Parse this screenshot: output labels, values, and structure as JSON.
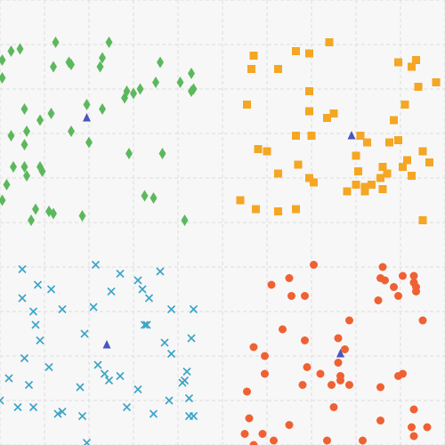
{
  "chart_data": {
    "type": "scatter",
    "title": "",
    "xlabel": "",
    "ylabel": "",
    "xlim": [
      0,
      10
    ],
    "ylim": [
      0,
      10
    ],
    "grid": true,
    "legend": "none",
    "colors": {
      "background": "#f7f7f7",
      "grid": "#dddddd",
      "green": "#5cb85c",
      "orange": "#f5a623",
      "blue": "#3aa3c8",
      "red": "#ef6133",
      "centroid": "#4a56c0"
    },
    "series": [
      {
        "marker": "diamond",
        "color": "#5cb85c",
        "points": [
          [
            0.05,
            8.65
          ],
          [
            0.25,
            8.85
          ],
          [
            0.45,
            8.9
          ],
          [
            1.25,
            9.05
          ],
          [
            2.45,
            9.05
          ],
          [
            1.6,
            8.55
          ],
          [
            1.2,
            8.5
          ],
          [
            1.55,
            8.6
          ],
          [
            2.3,
            8.7
          ],
          [
            2.25,
            8.5
          ],
          [
            3.6,
            8.6
          ],
          [
            0.05,
            8.25
          ],
          [
            4.3,
            8.35
          ],
          [
            4.05,
            8.15
          ],
          [
            4.3,
            7.95
          ],
          [
            4.35,
            8.0
          ],
          [
            3.5,
            8.15
          ],
          [
            3.15,
            8.0
          ],
          [
            3.0,
            7.9
          ],
          [
            2.8,
            7.8
          ],
          [
            2.85,
            7.95
          ],
          [
            1.95,
            7.65
          ],
          [
            2.3,
            7.55
          ],
          [
            0.55,
            7.55
          ],
          [
            0.9,
            7.3
          ],
          [
            1.15,
            7.45
          ],
          [
            0.6,
            7.05
          ],
          [
            1.6,
            7.05
          ],
          [
            0.25,
            6.95
          ],
          [
            2.0,
            6.8
          ],
          [
            0.55,
            6.75
          ],
          [
            2.9,
            6.55
          ],
          [
            3.65,
            6.55
          ],
          [
            0.3,
            6.25
          ],
          [
            0.55,
            6.25
          ],
          [
            0.9,
            6.25
          ],
          [
            0.6,
            6.05
          ],
          [
            0.95,
            6.15
          ],
          [
            0.15,
            5.85
          ],
          [
            3.25,
            5.6
          ],
          [
            3.45,
            5.55
          ],
          [
            0.05,
            5.5
          ],
          [
            0.8,
            5.3
          ],
          [
            1.1,
            5.25
          ],
          [
            1.2,
            5.2
          ],
          [
            1.85,
            5.15
          ],
          [
            0.7,
            5.05
          ],
          [
            4.15,
            5.05
          ]
        ]
      },
      {
        "marker": "square",
        "color": "#f5a623",
        "points": [
          [
            7.4,
            9.05
          ],
          [
            5.7,
            8.75
          ],
          [
            6.65,
            8.85
          ],
          [
            6.95,
            8.8
          ],
          [
            5.65,
            8.45
          ],
          [
            6.25,
            8.45
          ],
          [
            8.95,
            8.6
          ],
          [
            9.35,
            8.65
          ],
          [
            9.25,
            8.5
          ],
          [
            9.8,
            8.15
          ],
          [
            9.4,
            8.05
          ],
          [
            6.95,
            7.95
          ],
          [
            5.55,
            7.65
          ],
          [
            9.1,
            7.65
          ],
          [
            7.5,
            7.45
          ],
          [
            6.95,
            7.5
          ],
          [
            7.35,
            7.35
          ],
          [
            8.85,
            7.3
          ],
          [
            8.1,
            6.95
          ],
          [
            6.65,
            6.95
          ],
          [
            7.0,
            6.95
          ],
          [
            8.25,
            6.8
          ],
          [
            8.75,
            6.8
          ],
          [
            8.95,
            6.85
          ],
          [
            5.8,
            6.65
          ],
          [
            6.0,
            6.6
          ],
          [
            9.5,
            6.6
          ],
          [
            8.0,
            6.5
          ],
          [
            9.15,
            6.4
          ],
          [
            9.65,
            6.35
          ],
          [
            6.7,
            6.3
          ],
          [
            8.6,
            6.25
          ],
          [
            9.05,
            6.25
          ],
          [
            8.05,
            6.15
          ],
          [
            8.7,
            6.1
          ],
          [
            6.25,
            6.1
          ],
          [
            9.25,
            6.05
          ],
          [
            8.55,
            6.0
          ],
          [
            6.95,
            6.0
          ],
          [
            7.05,
            5.9
          ],
          [
            8.35,
            5.85
          ],
          [
            8.2,
            5.8
          ],
          [
            8.0,
            5.85
          ],
          [
            8.6,
            5.75
          ],
          [
            7.8,
            5.7
          ],
          [
            8.2,
            5.7
          ],
          [
            5.4,
            5.5
          ],
          [
            5.75,
            5.3
          ],
          [
            6.25,
            5.25
          ],
          [
            6.65,
            5.3
          ],
          [
            9.5,
            5.05
          ]
        ]
      },
      {
        "marker": "x",
        "color": "#3aa3c8",
        "points": [
          [
            2.15,
            4.05
          ],
          [
            0.5,
            3.95
          ],
          [
            2.7,
            3.85
          ],
          [
            3.6,
            3.9
          ],
          [
            3.1,
            3.7
          ],
          [
            0.85,
            3.6
          ],
          [
            1.15,
            3.5
          ],
          [
            2.5,
            3.45
          ],
          [
            3.2,
            3.5
          ],
          [
            3.35,
            3.3
          ],
          [
            0.5,
            3.3
          ],
          [
            1.4,
            3.05
          ],
          [
            2.1,
            3.1
          ],
          [
            3.85,
            3.05
          ],
          [
            4.35,
            3.05
          ],
          [
            0.75,
            3.0
          ],
          [
            0.8,
            2.7
          ],
          [
            3.25,
            2.7
          ],
          [
            3.3,
            2.7
          ],
          [
            1.9,
            2.5
          ],
          [
            4.3,
            2.4
          ],
          [
            0.9,
            2.35
          ],
          [
            3.7,
            2.3
          ],
          [
            3.85,
            2.05
          ],
          [
            0.55,
            1.95
          ],
          [
            2.2,
            1.8
          ],
          [
            1.1,
            1.75
          ],
          [
            4.2,
            1.65
          ],
          [
            2.35,
            1.6
          ],
          [
            2.7,
            1.55
          ],
          [
            0.2,
            1.5
          ],
          [
            2.45,
            1.45
          ],
          [
            4.1,
            1.4
          ],
          [
            4.15,
            1.45
          ],
          [
            0.65,
            1.35
          ],
          [
            1.8,
            1.3
          ],
          [
            3.1,
            1.25
          ],
          [
            0.0,
            1.0
          ],
          [
            4.25,
            1.05
          ],
          [
            3.8,
            1.0
          ],
          [
            0.4,
            0.85
          ],
          [
            0.75,
            0.85
          ],
          [
            2.85,
            0.85
          ],
          [
            1.4,
            0.75
          ],
          [
            1.3,
            0.7
          ],
          [
            3.45,
            0.7
          ],
          [
            1.85,
            0.65
          ],
          [
            4.25,
            0.65
          ],
          [
            4.35,
            0.65
          ],
          [
            1.95,
            0.05
          ]
        ]
      },
      {
        "marker": "circle",
        "color": "#ef6133",
        "points": [
          [
            7.05,
            4.05
          ],
          [
            8.6,
            4.0
          ],
          [
            8.55,
            3.75
          ],
          [
            9.05,
            3.8
          ],
          [
            9.3,
            3.8
          ],
          [
            8.65,
            3.7
          ],
          [
            9.3,
            3.65
          ],
          [
            6.5,
            3.75
          ],
          [
            6.1,
            3.6
          ],
          [
            9.35,
            3.55
          ],
          [
            8.85,
            3.55
          ],
          [
            9.35,
            3.45
          ],
          [
            6.55,
            3.35
          ],
          [
            6.85,
            3.35
          ],
          [
            8.95,
            3.35
          ],
          [
            8.5,
            3.25
          ],
          [
            9.5,
            2.8
          ],
          [
            7.85,
            2.8
          ],
          [
            6.35,
            2.6
          ],
          [
            7.6,
            2.4
          ],
          [
            6.85,
            2.35
          ],
          [
            5.7,
            2.2
          ],
          [
            7.75,
            2.15
          ],
          [
            5.95,
            2.0
          ],
          [
            6.9,
            1.75
          ],
          [
            7.6,
            1.85
          ],
          [
            5.95,
            1.6
          ],
          [
            7.2,
            1.6
          ],
          [
            7.65,
            1.55
          ],
          [
            7.45,
            1.35
          ],
          [
            7.65,
            1.45
          ],
          [
            7.85,
            1.35
          ],
          [
            8.95,
            1.55
          ],
          [
            9.05,
            1.6
          ],
          [
            8.55,
            1.3
          ],
          [
            6.8,
            1.35
          ],
          [
            5.55,
            1.2
          ],
          [
            7.5,
            0.85
          ],
          [
            9.3,
            0.8
          ],
          [
            5.6,
            0.6
          ],
          [
            8.55,
            0.55
          ],
          [
            6.5,
            0.45
          ],
          [
            9.6,
            0.4
          ],
          [
            5.5,
            0.25
          ],
          [
            9.25,
            0.4
          ],
          [
            9.3,
            0.2
          ],
          [
            5.9,
            0.25
          ],
          [
            6.15,
            0.1
          ],
          [
            5.7,
            0.0
          ],
          [
            7.35,
            0.1
          ],
          [
            8.15,
            0.1
          ]
        ]
      },
      {
        "marker": "triangle",
        "color": "#4a56c0",
        "points": [
          [
            1.95,
            7.35
          ],
          [
            7.9,
            6.95
          ],
          [
            2.4,
            2.25
          ],
          [
            7.65,
            2.05
          ]
        ]
      }
    ]
  }
}
